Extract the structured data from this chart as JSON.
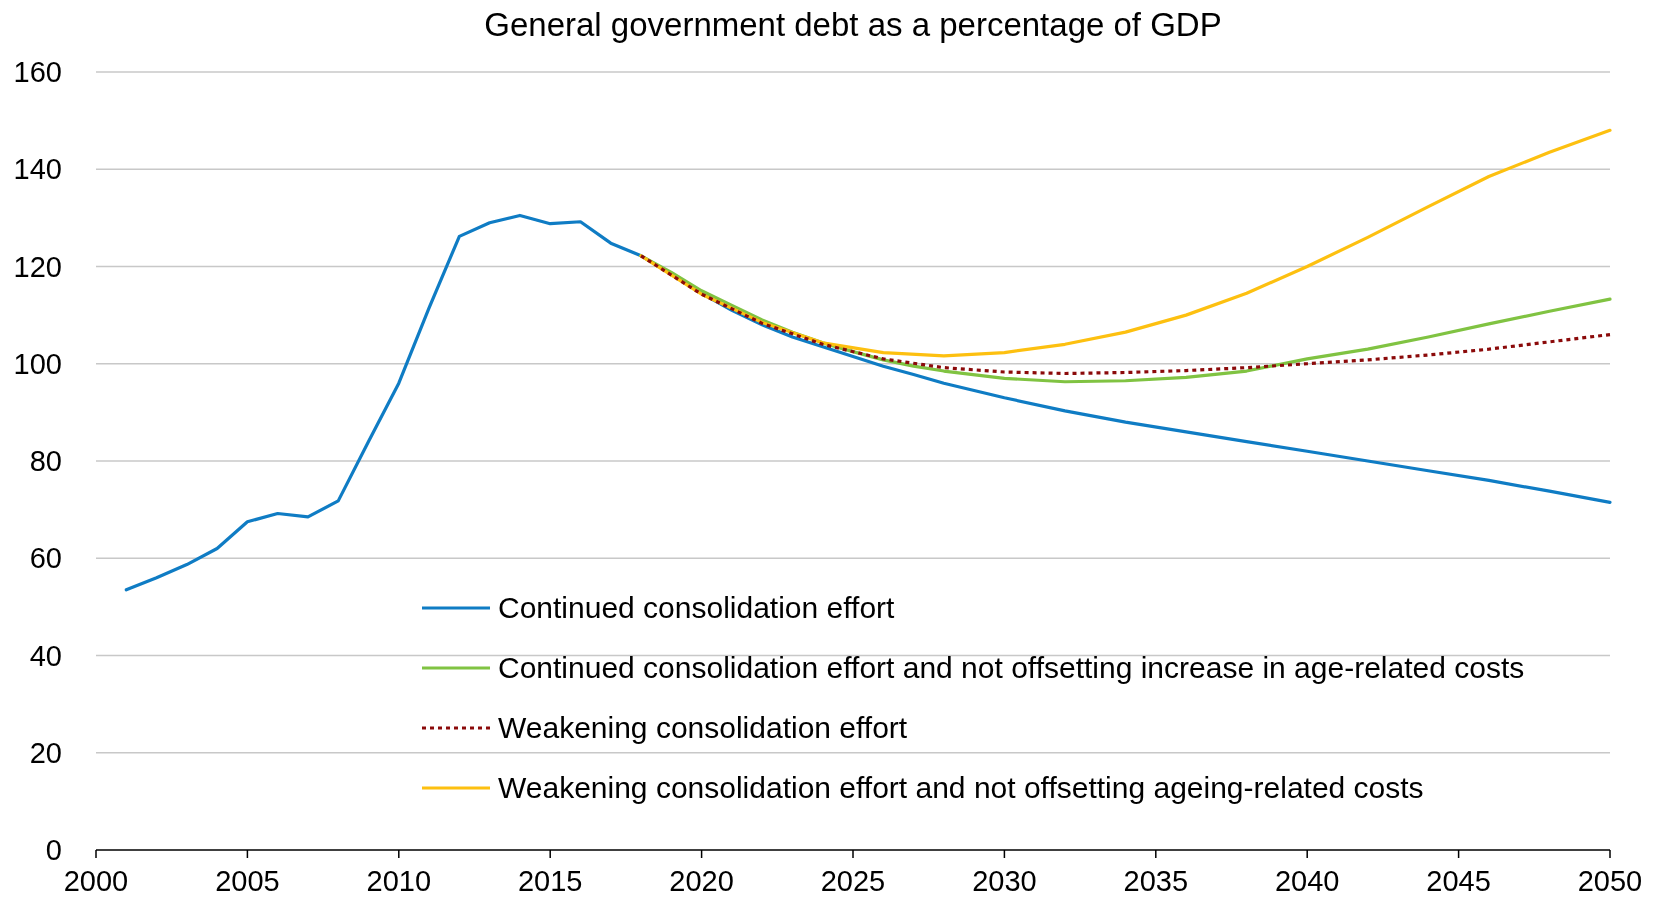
{
  "chart_data": {
    "type": "line",
    "title": "General government debt as a percentage of GDP",
    "xlim": [
      2000,
      2050
    ],
    "xticks": [
      2000,
      2005,
      2010,
      2015,
      2020,
      2025,
      2030,
      2035,
      2040,
      2045,
      2050
    ],
    "ylim": [
      0,
      160
    ],
    "yticks": [
      0,
      20,
      40,
      60,
      80,
      100,
      120,
      140,
      160
    ],
    "grid": "y",
    "legend": "bottom",
    "marker": "none",
    "series": [
      {
        "name": "Continued consolidation effort",
        "color": "#0f7cc4",
        "line_style": "solid",
        "x": [
          2001,
          2002,
          2003,
          2004,
          2005,
          2006,
          2007,
          2008,
          2009,
          2010,
          2011,
          2012,
          2013,
          2014,
          2015,
          2016,
          2017,
          2018,
          2019,
          2020,
          2021,
          2022,
          2023,
          2024,
          2025,
          2026,
          2027,
          2028,
          2029,
          2030,
          2032,
          2034,
          2036,
          2038,
          2040,
          2042,
          2044,
          2046,
          2048,
          2050
        ],
        "values": [
          53.5,
          56,
          58.7,
          62,
          67.5,
          69.2,
          68.5,
          71.8,
          84,
          96,
          111.5,
          126.2,
          129,
          130.5,
          128.8,
          129.2,
          124.8,
          122.2,
          118.5,
          114.5,
          111,
          108,
          105.5,
          103.5,
          101.5,
          99.5,
          97.8,
          96,
          94.5,
          93,
          90.3,
          88,
          86,
          84,
          82,
          80,
          78,
          76,
          73.8,
          71.5
        ]
      },
      {
        "name": "Continued consolidation effort and not offsetting increase in age-related costs",
        "color": "#80c342",
        "line_style": "solid",
        "x": [
          2018,
          2019,
          2020,
          2021,
          2022,
          2023,
          2024,
          2025,
          2026,
          2027,
          2028,
          2030,
          2032,
          2034,
          2036,
          2038,
          2040,
          2042,
          2044,
          2046,
          2048,
          2050
        ],
        "values": [
          122.2,
          118.8,
          115,
          112,
          109,
          106.5,
          104.3,
          102.5,
          100.8,
          99.5,
          98.5,
          97,
          96.3,
          96.5,
          97.2,
          98.5,
          101,
          103,
          105.5,
          108.2,
          110.8,
          113.3
        ]
      },
      {
        "name": "Weakening consolidation effort",
        "color": "#8b0a0a",
        "line_style": "dotted",
        "x": [
          2018,
          2020,
          2022,
          2024,
          2026,
          2028,
          2030,
          2032,
          2034,
          2036,
          2038,
          2040,
          2042,
          2044,
          2046,
          2048,
          2050
        ],
        "values": [
          122.2,
          114.3,
          108.3,
          104,
          101,
          99.2,
          98.3,
          98,
          98.2,
          98.6,
          99.2,
          100,
          100.8,
          101.8,
          103,
          104.5,
          106
        ]
      },
      {
        "name": "Weakening consolidation effort and not offsetting ageing-related costs",
        "color": "#fdc010",
        "line_style": "solid",
        "x": [
          2018,
          2020,
          2022,
          2024,
          2026,
          2028,
          2030,
          2032,
          2034,
          2036,
          2038,
          2040,
          2042,
          2044,
          2046,
          2048,
          2050
        ],
        "values": [
          122.2,
          114.3,
          108.5,
          104.3,
          102.3,
          101.6,
          102.3,
          104,
          106.5,
          110,
          114.5,
          120,
          126,
          132.3,
          138.5,
          143.5,
          148
        ]
      }
    ]
  }
}
